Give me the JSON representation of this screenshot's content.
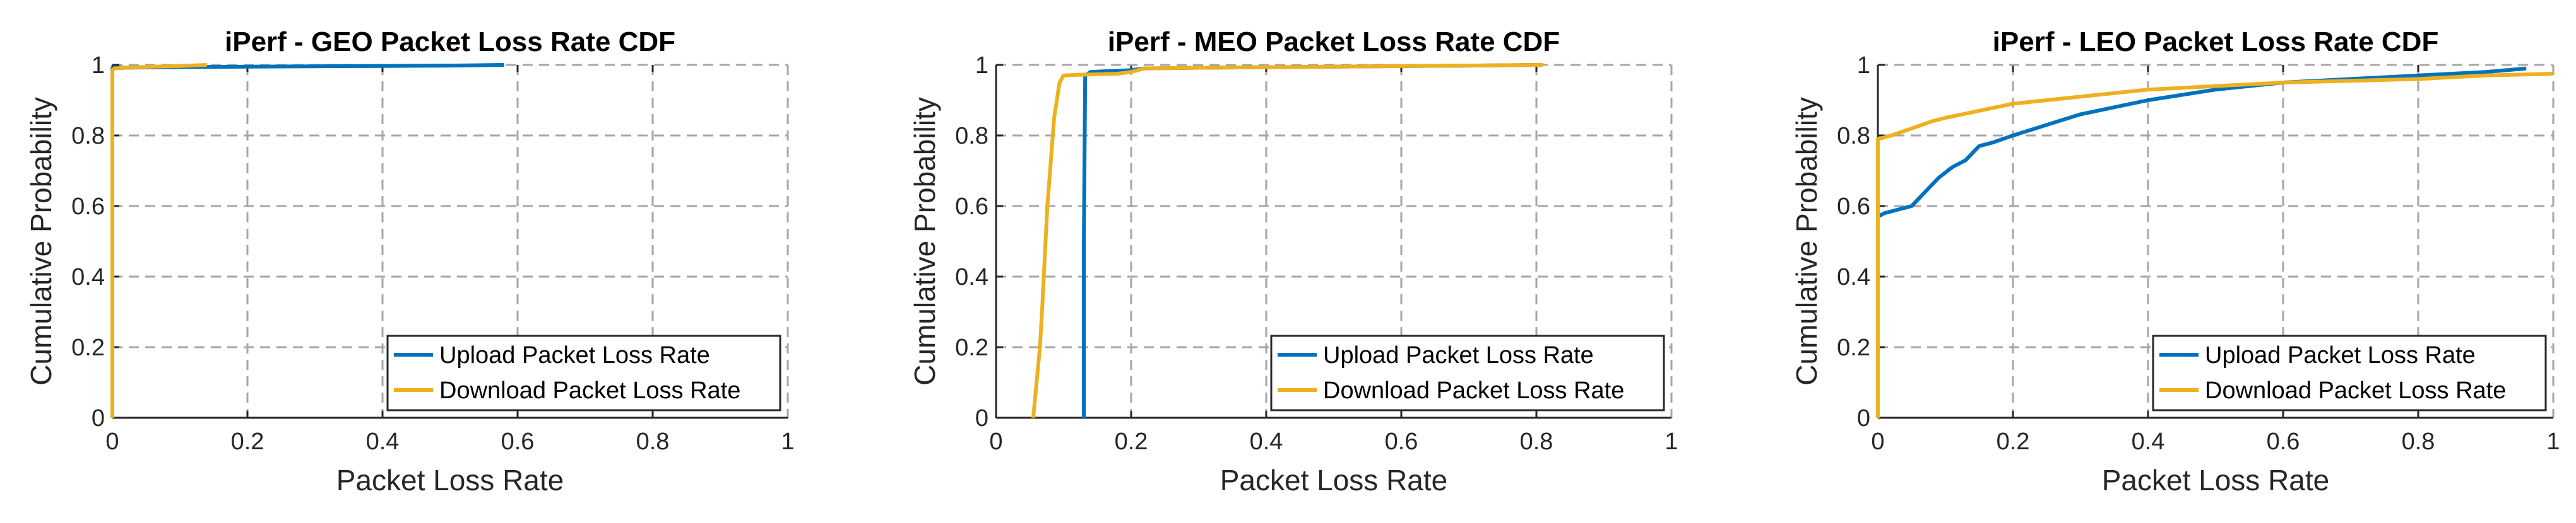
{
  "chart_data": [
    {
      "type": "line",
      "title": "iPerf - GEO Packet Loss Rate CDF",
      "xlabel": "Packet Loss Rate",
      "ylabel": "Cumulative Probability",
      "xlim": [
        0,
        1
      ],
      "ylim": [
        0,
        1
      ],
      "xticks": [
        "0",
        "0.2",
        "0.4",
        "0.6",
        "0.8",
        "1"
      ],
      "yticks": [
        "0",
        "0.2",
        "0.4",
        "0.6",
        "0.8",
        "1"
      ],
      "grid": true,
      "legend_position": "bottom-right",
      "series": [
        {
          "name": "Upload Packet Loss Rate",
          "color": "#0072BD",
          "x": [
            0,
            0,
            0.005,
            0.1,
            0.2,
            0.3,
            0.4,
            0.5,
            0.58
          ],
          "y": [
            0,
            0.99,
            0.992,
            0.994,
            0.995,
            0.996,
            0.997,
            0.998,
            1.0
          ]
        },
        {
          "name": "Download Packet Loss Rate",
          "color": "#EDB120",
          "x": [
            0,
            0,
            0.003,
            0.02,
            0.06,
            0.1,
            0.14
          ],
          "y": [
            0,
            0.985,
            0.99,
            0.992,
            0.995,
            0.997,
            1.0
          ]
        }
      ]
    },
    {
      "type": "line",
      "title": "iPerf - MEO Packet Loss Rate CDF",
      "xlabel": "Packet Loss Rate",
      "ylabel": "Cumulative Probability",
      "xlim": [
        0,
        1
      ],
      "ylim": [
        0,
        1
      ],
      "xticks": [
        "0",
        "0.2",
        "0.4",
        "0.6",
        "0.8",
        "1"
      ],
      "yticks": [
        "0",
        "0.2",
        "0.4",
        "0.6",
        "0.8",
        "1"
      ],
      "grid": true,
      "legend_position": "bottom-right",
      "series": [
        {
          "name": "Upload Packet Loss Rate",
          "color": "#0072BD",
          "x": [
            0.13,
            0.13,
            0.132,
            0.14,
            0.16,
            0.2,
            0.22,
            0.3,
            0.5,
            0.7,
            0.8
          ],
          "y": [
            0,
            0.5,
            0.97,
            0.98,
            0.982,
            0.985,
            0.99,
            0.992,
            0.995,
            0.998,
            1.0
          ]
        },
        {
          "name": "Download Packet Loss Rate",
          "color": "#EDB120",
          "x": [
            0.055,
            0.06,
            0.065,
            0.068,
            0.072,
            0.076,
            0.08,
            0.086,
            0.094,
            0.1,
            0.12,
            0.18,
            0.2,
            0.22,
            0.3,
            0.5,
            0.7,
            0.81
          ],
          "y": [
            0,
            0.1,
            0.2,
            0.3,
            0.45,
            0.6,
            0.7,
            0.85,
            0.95,
            0.97,
            0.972,
            0.975,
            0.98,
            0.99,
            0.992,
            0.995,
            0.998,
            1.0
          ]
        }
      ]
    },
    {
      "type": "line",
      "title": "iPerf - LEO Packet Loss Rate CDF",
      "xlabel": "Packet Loss Rate",
      "ylabel": "Cumulative Probability",
      "xlim": [
        0,
        1
      ],
      "ylim": [
        0,
        1
      ],
      "xticks": [
        "0",
        "0.2",
        "0.4",
        "0.6",
        "0.8",
        "1"
      ],
      "yticks": [
        "0",
        "0.2",
        "0.4",
        "0.6",
        "0.8",
        "1"
      ],
      "grid": true,
      "legend_position": "bottom-right",
      "series": [
        {
          "name": "Upload Packet Loss Rate",
          "color": "#0072BD",
          "x": [
            0,
            0,
            0.01,
            0.03,
            0.05,
            0.07,
            0.09,
            0.11,
            0.13,
            0.15,
            0.17,
            0.2,
            0.25,
            0.3,
            0.4,
            0.5,
            0.6,
            0.7,
            0.8,
            0.9,
            0.96
          ],
          "y": [
            0,
            0.57,
            0.58,
            0.59,
            0.6,
            0.64,
            0.68,
            0.71,
            0.73,
            0.77,
            0.78,
            0.8,
            0.83,
            0.86,
            0.9,
            0.93,
            0.95,
            0.96,
            0.97,
            0.98,
            0.99
          ]
        },
        {
          "name": "Download Packet Loss Rate",
          "color": "#EDB120",
          "x": [
            0,
            0,
            0.02,
            0.05,
            0.08,
            0.1,
            0.15,
            0.2,
            0.25,
            0.3,
            0.4,
            0.5,
            0.6,
            0.7,
            0.8,
            0.9,
            1.0
          ],
          "y": [
            0,
            0.79,
            0.8,
            0.82,
            0.84,
            0.85,
            0.87,
            0.89,
            0.9,
            0.91,
            0.93,
            0.94,
            0.95,
            0.955,
            0.96,
            0.97,
            0.975
          ]
        }
      ]
    }
  ]
}
